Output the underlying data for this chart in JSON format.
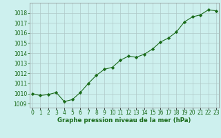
{
  "x": [
    0,
    1,
    2,
    3,
    4,
    5,
    6,
    7,
    8,
    9,
    10,
    11,
    12,
    13,
    14,
    15,
    16,
    17,
    18,
    19,
    20,
    21,
    22,
    23
  ],
  "y": [
    1010.0,
    1009.8,
    1009.9,
    1010.1,
    1009.2,
    1009.4,
    1010.1,
    1011.0,
    1011.8,
    1012.4,
    1012.6,
    1013.3,
    1013.7,
    1013.6,
    1013.9,
    1014.4,
    1015.1,
    1015.5,
    1016.1,
    1017.1,
    1017.6,
    1017.8,
    1018.3,
    1018.2
  ],
  "line_color": "#1a6b1a",
  "marker_color": "#1a6b1a",
  "bg_color": "#cdf0ee",
  "grid_color": "#b0c8c8",
  "ylabel_ticks": [
    1009,
    1010,
    1011,
    1012,
    1013,
    1014,
    1015,
    1016,
    1017,
    1018
  ],
  "ylim": [
    1008.6,
    1019.0
  ],
  "xlim": [
    -0.3,
    23.3
  ],
  "xlabel": "Graphe pression niveau de la mer (hPa)",
  "font_color": "#1a6b1a",
  "tick_fontsize": 5.5,
  "xlabel_fontsize": 6.2
}
